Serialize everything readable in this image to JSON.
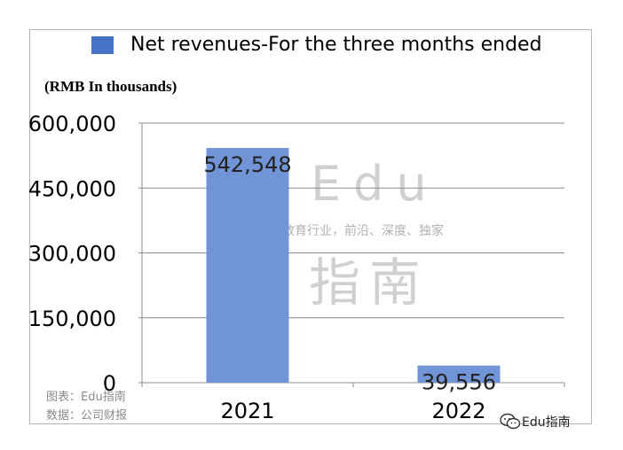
{
  "chart_data": {
    "type": "bar",
    "categories": [
      "2021",
      "2022"
    ],
    "series": [
      {
        "name": "Net revenues-For the three months ended",
        "values": [
          542548,
          39556
        ]
      }
    ],
    "data_labels": [
      "542,548",
      "39,556"
    ],
    "y_tick_labels": [
      "600,000",
      "450,000",
      "300,000",
      "150,000",
      "0"
    ],
    "y_ticks": [
      600000,
      450000,
      300000,
      150000,
      0
    ],
    "ylim": [
      0,
      600000
    ],
    "ylabel": "(RMB In thousands)",
    "title": "",
    "xlabel": "",
    "grid": true,
    "legend_position": "top",
    "bar_color": "#7094d6"
  },
  "legend_label": "Net revenues-For the three months ended",
  "legend_color": "#4472c4",
  "watermark": {
    "big": "Edu",
    "small": "教育行业，前沿、深度、独家",
    "cjk": "指南"
  },
  "footnote": {
    "line1": "图表：Edu指南",
    "line2": "数据：公司财报"
  },
  "brand": "Edu指南",
  "brand_icon": "wechat-icon"
}
